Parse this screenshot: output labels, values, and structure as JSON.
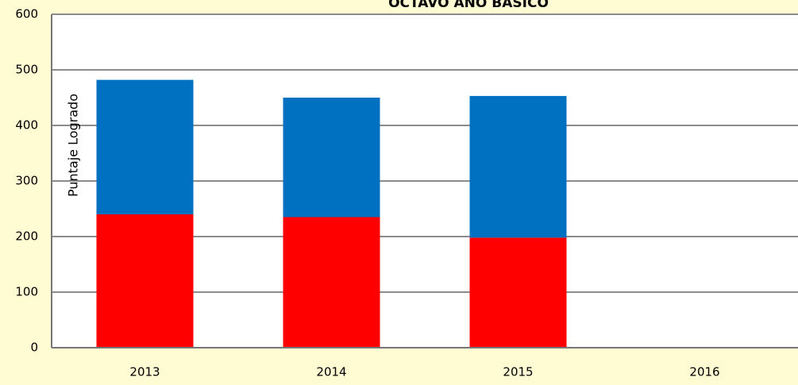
{
  "chart_data": {
    "type": "stacked_bar",
    "title": "OCTAVO AÑO BÁSICO",
    "y_label": "Puntaje Logrado",
    "categories": [
      "2013",
      "2014",
      "2015",
      "2016"
    ],
    "series": [
      {
        "color": "#ff0000",
        "values": [
          240,
          235,
          198,
          null
        ]
      },
      {
        "color": "#0070c0",
        "values": [
          242,
          215,
          255,
          null
        ]
      }
    ],
    "ylim": [
      0,
      600
    ],
    "yticks": [
      0,
      100,
      200,
      300,
      400,
      500,
      600
    ],
    "grid": true
  }
}
